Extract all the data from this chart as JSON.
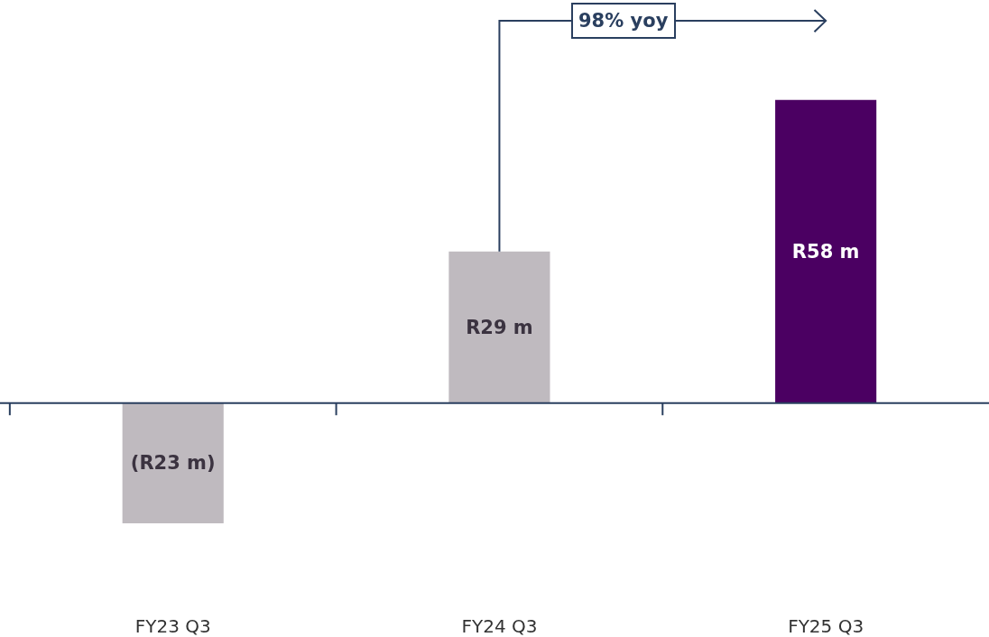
{
  "chart_data": {
    "type": "bar",
    "categories": [
      "FY23 Q3",
      "FY24 Q3",
      "FY25 Q3"
    ],
    "values": [
      -23,
      29,
      58
    ],
    "colors": [
      "#bfbabf",
      "#bfbabf",
      "#4b0062"
    ],
    "value_labels": [
      "(R23 m)",
      "R29 m",
      "R58 m"
    ],
    "annotations": [
      "98% yoy"
    ],
    "legend": false
  }
}
